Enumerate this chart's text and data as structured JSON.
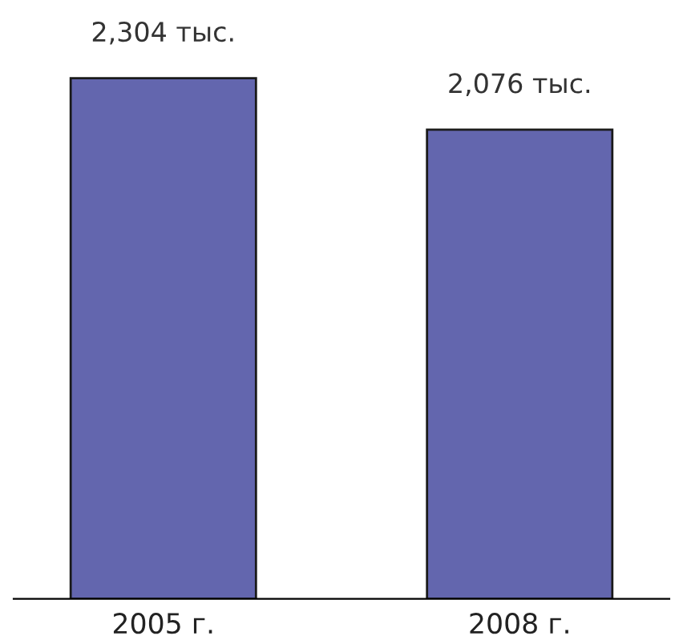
{
  "chart_data": {
    "type": "bar",
    "categories": [
      "2005 г.",
      "2008 г."
    ],
    "values": [
      2304,
      2076
    ],
    "value_labels": [
      "2,304 тыс.",
      "2,076 тыс."
    ],
    "color": "#6366ae",
    "tick_labels": "x",
    "grid": false,
    "legend": false
  }
}
